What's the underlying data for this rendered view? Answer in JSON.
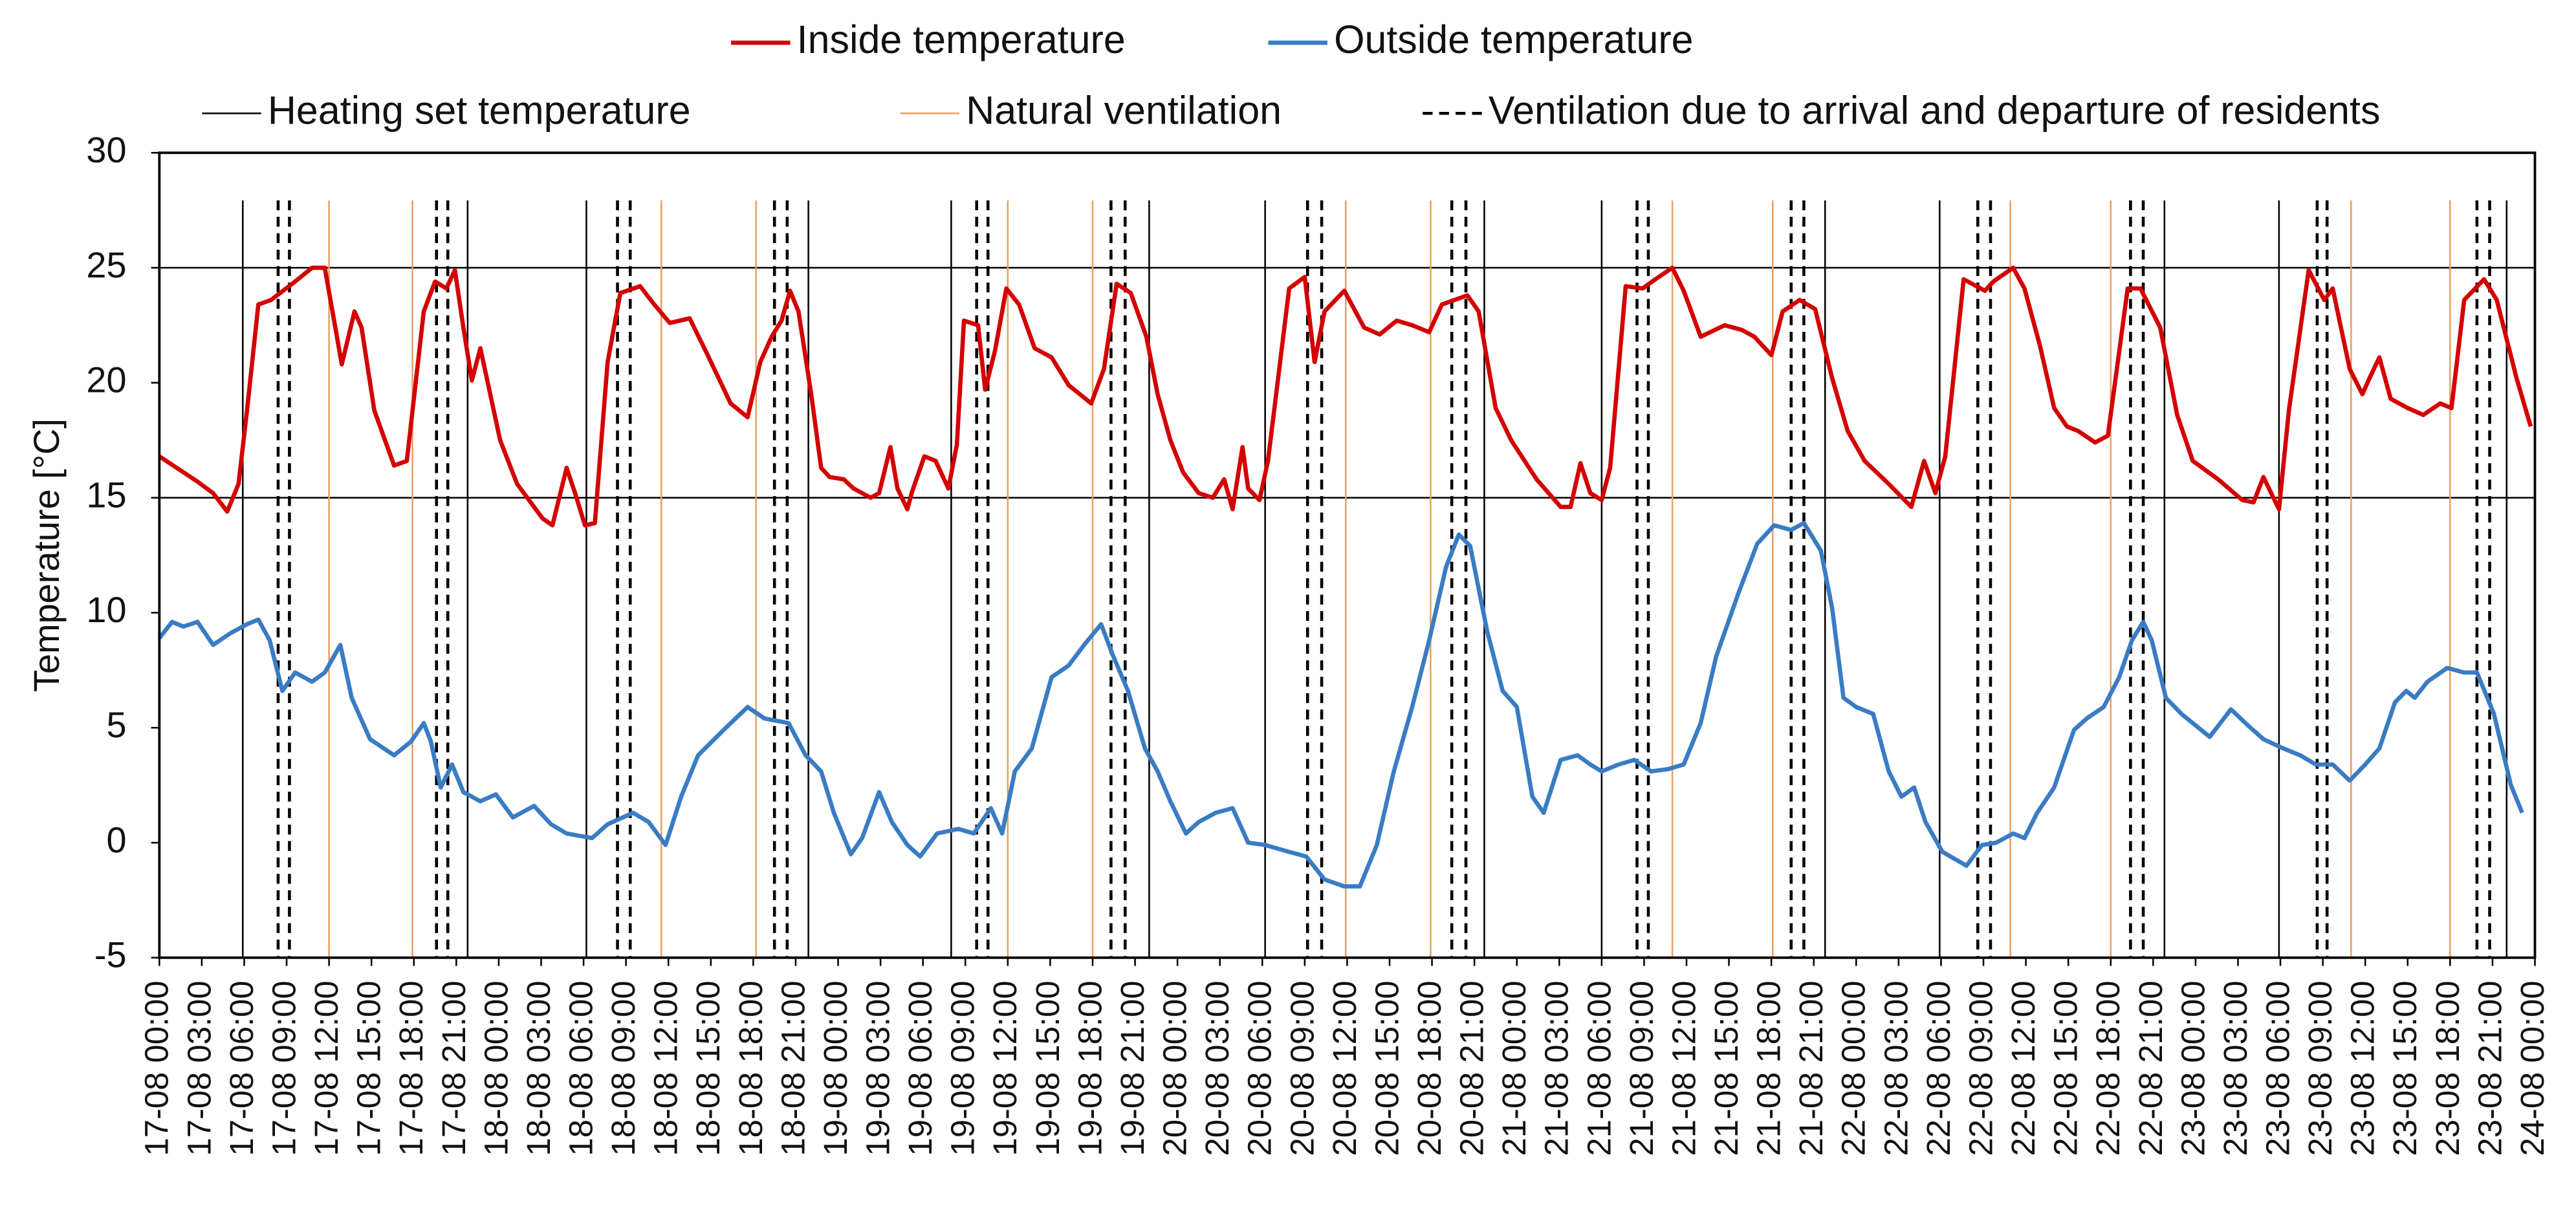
{
  "chart_data": {
    "type": "line",
    "ylabel": "Temperature [°C]",
    "ylim": [
      -5,
      30
    ],
    "yticks": [
      -5,
      0,
      5,
      10,
      15,
      20,
      25,
      30
    ],
    "xlim": [
      0,
      168
    ],
    "xticks": [
      {
        "value": 0,
        "label": "17-08 00:00"
      },
      {
        "value": 3,
        "label": "17-08 03:00"
      },
      {
        "value": 6,
        "label": "17-08 06:00"
      },
      {
        "value": 9,
        "label": "17-08 09:00"
      },
      {
        "value": 12,
        "label": "17-08 12:00"
      },
      {
        "value": 15,
        "label": "17-08 15:00"
      },
      {
        "value": 18,
        "label": "17-08 18:00"
      },
      {
        "value": 21,
        "label": "17-08 21:00"
      },
      {
        "value": 24,
        "label": "18-08 00:00"
      },
      {
        "value": 27,
        "label": "18-08 03:00"
      },
      {
        "value": 30,
        "label": "18-08 06:00"
      },
      {
        "value": 33,
        "label": "18-08 09:00"
      },
      {
        "value": 36,
        "label": "18-08 12:00"
      },
      {
        "value": 39,
        "label": "18-08 15:00"
      },
      {
        "value": 42,
        "label": "18-08 18:00"
      },
      {
        "value": 45,
        "label": "18-08 21:00"
      },
      {
        "value": 48,
        "label": "19-08 00:00"
      },
      {
        "value": 51,
        "label": "19-08 03:00"
      },
      {
        "value": 54,
        "label": "19-08 06:00"
      },
      {
        "value": 57,
        "label": "19-08 09:00"
      },
      {
        "value": 60,
        "label": "19-08 12:00"
      },
      {
        "value": 63,
        "label": "19-08 15:00"
      },
      {
        "value": 66,
        "label": "19-08 18:00"
      },
      {
        "value": 69,
        "label": "19-08 21:00"
      },
      {
        "value": 72,
        "label": "20-08 00:00"
      },
      {
        "value": 75,
        "label": "20-08 03:00"
      },
      {
        "value": 78,
        "label": "20-08 06:00"
      },
      {
        "value": 81,
        "label": "20-08 09:00"
      },
      {
        "value": 84,
        "label": "20-08 12:00"
      },
      {
        "value": 87,
        "label": "20-08 15:00"
      },
      {
        "value": 90,
        "label": "20-08 18:00"
      },
      {
        "value": 93,
        "label": "20-08 21:00"
      },
      {
        "value": 96,
        "label": "21-08 00:00"
      },
      {
        "value": 99,
        "label": "21-08 03:00"
      },
      {
        "value": 102,
        "label": "21-08 06:00"
      },
      {
        "value": 105,
        "label": "21-08 09:00"
      },
      {
        "value": 108,
        "label": "21-08 12:00"
      },
      {
        "value": 111,
        "label": "21-08 15:00"
      },
      {
        "value": 114,
        "label": "21-08 18:00"
      },
      {
        "value": 117,
        "label": "21-08 21:00"
      },
      {
        "value": 120,
        "label": "22-08 00:00"
      },
      {
        "value": 123,
        "label": "22-08 03:00"
      },
      {
        "value": 126,
        "label": "22-08 06:00"
      },
      {
        "value": 129,
        "label": "22-08 09:00"
      },
      {
        "value": 132,
        "label": "22-08 12:00"
      },
      {
        "value": 135,
        "label": "22-08 15:00"
      },
      {
        "value": 138,
        "label": "22-08 18:00"
      },
      {
        "value": 141,
        "label": "22-08 21:00"
      },
      {
        "value": 144,
        "label": "23-08 00:00"
      },
      {
        "value": 147,
        "label": "23-08 03:00"
      },
      {
        "value": 150,
        "label": "23-08 06:00"
      },
      {
        "value": 153,
        "label": "23-08 09:00"
      },
      {
        "value": 156,
        "label": "23-08 12:00"
      },
      {
        "value": 159,
        "label": "23-08 15:00"
      },
      {
        "value": 162,
        "label": "23-08 18:00"
      },
      {
        "value": 165,
        "label": "23-08 21:00"
      },
      {
        "value": 168,
        "label": "24-08 00:00"
      }
    ],
    "series": [
      {
        "name": "Inside temperature",
        "color": "#d40000",
        "x": [
          0,
          2.7,
          3.8,
          4.8,
          5.6,
          6.2,
          7.0,
          7.9,
          9.6,
          10.8,
          11.7,
          12.9,
          13.8,
          14.3,
          15.2,
          16.6,
          17.5,
          18.7,
          19.5,
          20.3,
          20.9,
          21.5,
          22.1,
          22.7,
          23.4,
          24.1,
          25.3,
          27.1,
          27.8,
          28.8,
          29.4,
          30.1,
          30.8,
          31.7,
          32.6,
          34.0,
          35.0,
          36.1,
          37.5,
          38.7,
          40.4,
          41.6,
          42.5,
          43.3,
          44.0,
          44.6,
          45.2,
          46.1,
          46.8,
          47.4,
          48.4,
          49.1,
          50.3,
          50.9,
          51.7,
          52.2,
          52.9,
          53.2,
          54.1,
          54.9,
          55.8,
          56.4,
          56.9,
          57.9,
          58.4,
          59.1,
          59.9,
          60.8,
          61.9,
          63.1,
          64.3,
          65.9,
          66.8,
          67.7,
          68.7,
          69.8,
          70.6,
          71.5,
          72.4,
          73.5,
          74.5,
          75.3,
          75.9,
          76.6,
          77.0,
          77.8,
          78.4,
          79.9,
          81.0,
          81.7,
          82.4,
          83.8,
          85.2,
          86.3,
          87.5,
          88.6,
          89.8,
          90.7,
          92.5,
          93.3,
          94.5,
          95.6,
          97.4,
          99.1,
          99.8,
          100.5,
          101.2,
          102.0,
          102.6,
          103.7,
          104.9,
          105.8,
          107.0,
          107.8,
          109.0,
          110.7,
          111.9,
          112.8,
          114.0,
          114.8,
          116.0,
          117.1,
          118.3,
          119.4,
          120.6,
          122.3,
          123.9,
          124.8,
          125.6,
          126.3,
          127.6,
          129.1,
          129.7,
          131.1,
          131.9,
          133.0,
          134.0,
          134.9,
          135.7,
          136.9,
          137.8,
          139.2,
          140.1,
          141.5,
          142.7,
          143.8,
          145.6,
          147.3,
          148.1,
          148.8,
          149.9,
          150.6,
          152.0,
          153.1,
          153.7,
          154.9,
          155.8,
          156.3,
          157.0,
          157.8,
          159.0,
          160.1,
          161.3,
          162.1,
          163.0,
          164.4,
          165.3,
          166.7,
          167.7
        ],
        "values": [
          16.8,
          15.7,
          15.2,
          14.4,
          15.6,
          18.8,
          23.4,
          23.6,
          24.4,
          25.0,
          25.0,
          20.8,
          23.1,
          22.4,
          18.8,
          16.4,
          16.6,
          23.1,
          24.4,
          24.1,
          24.9,
          22.4,
          20.1,
          21.5,
          19.5,
          17.5,
          15.6,
          14.1,
          13.8,
          16.3,
          15.2,
          13.8,
          13.9,
          20.9,
          23.9,
          24.2,
          23.4,
          22.6,
          22.8,
          21.3,
          19.1,
          18.5,
          20.9,
          22.0,
          22.7,
          24.0,
          23.1,
          19.5,
          16.3,
          15.9,
          15.8,
          15.4,
          15.0,
          15.2,
          17.2,
          15.4,
          14.5,
          15.2,
          16.8,
          16.6,
          15.4,
          17.3,
          22.7,
          22.5,
          19.7,
          21.4,
          24.1,
          23.4,
          21.5,
          21.1,
          19.9,
          19.1,
          20.6,
          24.3,
          23.9,
          22.0,
          19.5,
          17.5,
          16.1,
          15.2,
          15.0,
          15.8,
          14.5,
          17.2,
          15.4,
          14.9,
          16.6,
          24.1,
          24.6,
          20.9,
          23.1,
          24.0,
          22.4,
          22.1,
          22.7,
          22.5,
          22.2,
          23.4,
          23.8,
          23.1,
          18.9,
          17.5,
          15.8,
          14.6,
          14.6,
          16.5,
          15.2,
          14.9,
          16.3,
          24.2,
          24.1,
          24.5,
          25.0,
          24.0,
          22.0,
          22.5,
          22.3,
          22.0,
          21.2,
          23.1,
          23.6,
          23.2,
          20.2,
          17.9,
          16.6,
          15.6,
          14.6,
          16.6,
          15.2,
          16.8,
          24.5,
          24.0,
          24.4,
          25.0,
          24.1,
          21.6,
          18.9,
          18.1,
          17.9,
          17.4,
          17.7,
          24.1,
          24.1,
          22.4,
          18.6,
          16.6,
          15.8,
          14.9,
          14.8,
          15.9,
          14.5,
          18.8,
          24.9,
          23.6,
          24.1,
          20.6,
          19.5,
          20.2,
          21.1,
          19.3,
          18.9,
          18.6,
          19.1,
          18.9,
          23.6,
          24.5,
          23.6,
          20.2,
          18.1
        ]
      },
      {
        "name": "Outside temperature",
        "color": "#3a7cc3",
        "x": [
          0,
          0.9,
          1.7,
          2.7,
          3.8,
          5.0,
          6.2,
          7.0,
          7.8,
          8.7,
          9.6,
          10.8,
          11.7,
          12.8,
          13.6,
          14.9,
          16.6,
          17.8,
          18.7,
          19.2,
          19.9,
          20.7,
          21.5,
          22.7,
          23.8,
          25.0,
          26.5,
          27.7,
          28.8,
          30.6,
          31.7,
          33.5,
          34.6,
          35.8,
          36.9,
          38.1,
          39.9,
          41.6,
          42.8,
          44.5,
          45.7,
          46.8,
          47.7,
          48.9,
          49.7,
          50.9,
          51.8,
          52.9,
          53.8,
          55.0,
          56.5,
          57.6,
          58.8,
          59.6,
          60.5,
          61.7,
          63.1,
          64.3,
          65.4,
          66.6,
          67.4,
          68.5,
          69.7,
          70.6,
          71.5,
          72.6,
          73.5,
          74.7,
          75.9,
          77.0,
          78.2,
          79.9,
          81.1,
          82.4,
          83.8,
          84.9,
          86.1,
          87.3,
          88.6,
          89.8,
          91.0,
          91.9,
          92.7,
          93.9,
          95.0,
          96.0,
          97.1,
          97.9,
          99.1,
          100.3,
          101.2,
          102.0,
          103.2,
          104.3,
          105.5,
          106.7,
          107.8,
          109.0,
          110.1,
          111.7,
          113.0,
          114.2,
          115.4,
          116.3,
          117.5,
          118.3,
          119.1,
          120.0,
          121.2,
          122.3,
          123.2,
          124.1,
          124.9,
          126.1,
          127.8,
          128.9,
          129.9,
          131.1,
          131.9,
          132.8,
          134.0,
          135.4,
          136.3,
          137.5,
          138.6,
          139.5,
          140.3,
          140.9,
          141.9,
          143.0,
          143.8,
          145.0,
          146.5,
          147.7,
          148.8,
          150.2,
          151.4,
          152.5,
          153.7,
          154.9,
          156.0,
          157.0,
          158.1,
          158.9,
          159.5,
          160.4,
          161.8,
          163.0,
          163.9,
          165.1,
          166.3,
          167.1
        ],
        "values": [
          8.9,
          9.6,
          9.4,
          9.6,
          8.6,
          9.1,
          9.5,
          9.7,
          8.8,
          6.6,
          7.4,
          7.0,
          7.4,
          8.6,
          6.3,
          4.5,
          3.8,
          4.4,
          5.2,
          4.4,
          2.4,
          3.4,
          2.2,
          1.8,
          2.1,
          1.1,
          1.6,
          0.8,
          0.4,
          0.2,
          0.8,
          1.3,
          0.9,
          -0.1,
          2.0,
          3.8,
          4.9,
          5.9,
          5.4,
          5.2,
          3.8,
          3.1,
          1.3,
          -0.5,
          0.2,
          2.2,
          0.9,
          -0.1,
          -0.6,
          0.4,
          0.6,
          0.4,
          1.5,
          0.4,
          3.1,
          4.1,
          7.2,
          7.7,
          8.6,
          9.5,
          8.2,
          6.6,
          4.1,
          3.1,
          1.8,
          0.4,
          0.9,
          1.3,
          1.5,
          0.0,
          -0.1,
          -0.4,
          -0.6,
          -1.6,
          -1.9,
          -1.9,
          -0.1,
          3.1,
          5.9,
          8.8,
          12.0,
          13.4,
          12.9,
          9.2,
          6.6,
          5.9,
          2.0,
          1.3,
          3.6,
          3.8,
          3.4,
          3.1,
          3.4,
          3.6,
          3.1,
          3.2,
          3.4,
          5.2,
          8.1,
          10.9,
          13.0,
          13.8,
          13.6,
          13.9,
          12.7,
          10.2,
          6.3,
          5.9,
          5.6,
          3.1,
          2.0,
          2.4,
          0.9,
          -0.4,
          -1.0,
          -0.1,
          0.0,
          0.4,
          0.2,
          1.3,
          2.4,
          4.9,
          5.4,
          5.9,
          7.2,
          8.8,
          9.6,
          8.8,
          6.3,
          5.6,
          5.2,
          4.6,
          5.8,
          5.1,
          4.5,
          4.1,
          3.8,
          3.4,
          3.4,
          2.7,
          3.4,
          4.1,
          6.1,
          6.6,
          6.3,
          7.0,
          7.6,
          7.4,
          7.4,
          5.6,
          2.5,
          1.3
        ]
      }
    ],
    "event_lines": [
      {
        "name": "Heating set temperature",
        "color": "#000000",
        "dashed": false,
        "levels": [
          15,
          25
        ],
        "x": [
          5.9,
          21.8,
          30.2,
          45.9,
          56.0,
          70.0,
          78.2,
          93.7,
          102.0,
          117.8,
          125.9,
          141.8,
          149.9,
          166.0
        ]
      },
      {
        "name": "Natural ventilation",
        "color": "#e8a060",
        "dashed": false,
        "x": [
          12.0,
          17.9,
          35.5,
          42.2,
          60.0,
          66.0,
          83.9,
          89.9,
          107.0,
          114.1,
          130.9,
          138.0,
          155.0,
          162.0
        ]
      },
      {
        "name": "Ventilation due to arrival and departure of residents",
        "color": "#000000",
        "dashed": true,
        "x": [
          8.4,
          9.2,
          19.6,
          20.4,
          32.4,
          33.3,
          43.5,
          44.4,
          57.8,
          58.6,
          67.3,
          68.3,
          81.2,
          82.2,
          91.4,
          92.4,
          104.5,
          105.3,
          115.4,
          116.3,
          128.6,
          129.5,
          139.4,
          140.3,
          152.6,
          153.3,
          163.9,
          164.8
        ]
      }
    ]
  }
}
